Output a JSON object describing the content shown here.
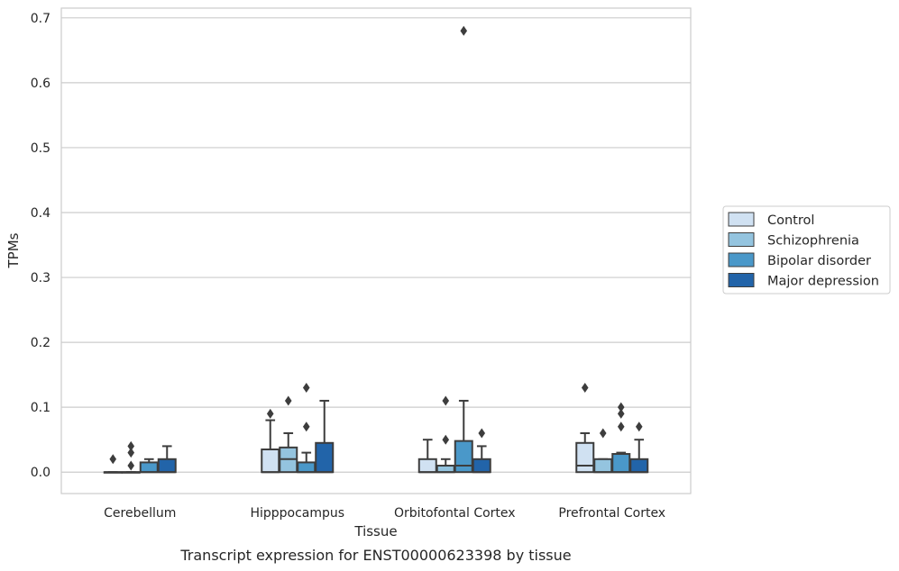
{
  "caption": "Transcript expression for ENST00000623398 by tissue",
  "chart_data": {
    "type": "box",
    "xlabel": "Tissue",
    "ylabel": "TPMs",
    "ylim": [
      -0.033,
      0.715
    ],
    "yticks": [
      "0.0",
      "0.1",
      "0.2",
      "0.3",
      "0.4",
      "0.5",
      "0.6",
      "0.7"
    ],
    "ytick_values": [
      0.0,
      0.1,
      0.2,
      0.3,
      0.4,
      0.5,
      0.6,
      0.7
    ],
    "grid": "horizontal",
    "legend_position": "right",
    "categories": [
      "Cerebellum",
      "Hipppocampus",
      "Orbitofontal Cortex",
      "Prefrontal Cortex"
    ],
    "series": [
      {
        "name": "Control",
        "color": "#d0e1f2",
        "boxes": [
          {
            "q1": 0.0,
            "median": 0.0,
            "q3": 0.0,
            "whisker_low": 0.0,
            "whisker_high": 0.0,
            "outliers": [
              0.02
            ]
          },
          {
            "q1": 0.0,
            "median": 0.0,
            "q3": 0.035,
            "whisker_low": 0.0,
            "whisker_high": 0.08,
            "outliers": [
              0.09
            ]
          },
          {
            "q1": 0.0,
            "median": 0.0,
            "q3": 0.02,
            "whisker_low": 0.0,
            "whisker_high": 0.05,
            "outliers": []
          },
          {
            "q1": 0.0,
            "median": 0.01,
            "q3": 0.045,
            "whisker_low": 0.0,
            "whisker_high": 0.06,
            "outliers": [
              0.13
            ]
          }
        ]
      },
      {
        "name": "Schizophrenia",
        "color": "#94c4df",
        "boxes": [
          {
            "q1": 0.0,
            "median": 0.0,
            "q3": 0.0,
            "whisker_low": 0.0,
            "whisker_high": 0.0,
            "outliers": [
              0.01,
              0.03,
              0.04
            ]
          },
          {
            "q1": 0.0,
            "median": 0.02,
            "q3": 0.038,
            "whisker_low": 0.0,
            "whisker_high": 0.06,
            "outliers": [
              0.11
            ]
          },
          {
            "q1": 0.0,
            "median": 0.0,
            "q3": 0.01,
            "whisker_low": 0.0,
            "whisker_high": 0.02,
            "outliers": [
              0.05,
              0.11
            ]
          },
          {
            "q1": 0.0,
            "median": 0.0,
            "q3": 0.02,
            "whisker_low": 0.0,
            "whisker_high": 0.02,
            "outliers": [
              0.06
            ]
          }
        ]
      },
      {
        "name": "Bipolar disorder",
        "color": "#4a98c9",
        "boxes": [
          {
            "q1": 0.0,
            "median": 0.0,
            "q3": 0.015,
            "whisker_low": 0.0,
            "whisker_high": 0.02,
            "outliers": []
          },
          {
            "q1": 0.0,
            "median": 0.0,
            "q3": 0.015,
            "whisker_low": 0.0,
            "whisker_high": 0.03,
            "outliers": [
              0.07,
              0.13
            ]
          },
          {
            "q1": 0.0,
            "median": 0.01,
            "q3": 0.048,
            "whisker_low": 0.0,
            "whisker_high": 0.11,
            "outliers": [
              0.68
            ]
          },
          {
            "q1": 0.0,
            "median": 0.0,
            "q3": 0.028,
            "whisker_low": 0.0,
            "whisker_high": 0.03,
            "outliers": [
              0.07,
              0.09,
              0.1
            ]
          }
        ]
      },
      {
        "name": "Major depression",
        "color": "#2264a9",
        "boxes": [
          {
            "q1": 0.0,
            "median": 0.0,
            "q3": 0.02,
            "whisker_low": 0.0,
            "whisker_high": 0.04,
            "outliers": []
          },
          {
            "q1": 0.0,
            "median": 0.0,
            "q3": 0.045,
            "whisker_low": 0.0,
            "whisker_high": 0.11,
            "outliers": []
          },
          {
            "q1": 0.0,
            "median": 0.0,
            "q3": 0.02,
            "whisker_low": 0.0,
            "whisker_high": 0.04,
            "outliers": [
              0.06
            ]
          },
          {
            "q1": 0.0,
            "median": 0.0,
            "q3": 0.02,
            "whisker_low": 0.0,
            "whisker_high": 0.05,
            "outliers": [
              0.07
            ]
          }
        ]
      }
    ]
  }
}
